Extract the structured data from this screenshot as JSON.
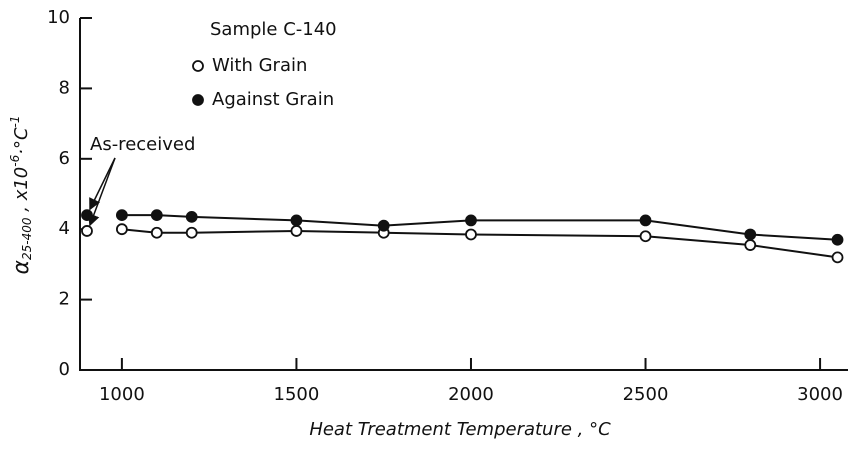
{
  "chart_data": {
    "type": "line",
    "x_label": "Heat Treatment Temperature , °C",
    "y_label": {
      "symbol": "α",
      "subscript": "25-400",
      "text": " , x10",
      "exp1": "-6",
      "unit": "·°C",
      "exp2": "-1"
    },
    "legend_title": "Sample C-140",
    "annotation": "As-received",
    "x": [
      900,
      1000,
      1100,
      1200,
      1500,
      1750,
      2000,
      2500,
      2800,
      3050
    ],
    "series": [
      {
        "name": "With Grain",
        "color": "#111111",
        "marker": "open",
        "values": [
          3.95,
          4.0,
          3.9,
          3.9,
          3.95,
          3.9,
          3.85,
          3.8,
          3.55,
          3.2
        ]
      },
      {
        "name": "Against Grain",
        "color": "#111111",
        "marker": "filled",
        "values": [
          4.4,
          4.4,
          4.4,
          4.35,
          4.25,
          4.1,
          4.25,
          4.25,
          3.85,
          3.7
        ]
      }
    ],
    "xlim": [
      880,
      3080
    ],
    "xticks": [
      1000,
      1500,
      2000,
      2500,
      3000
    ],
    "ylim": [
      0,
      10
    ],
    "yticks": [
      0,
      2,
      4,
      6,
      8,
      10
    ]
  }
}
